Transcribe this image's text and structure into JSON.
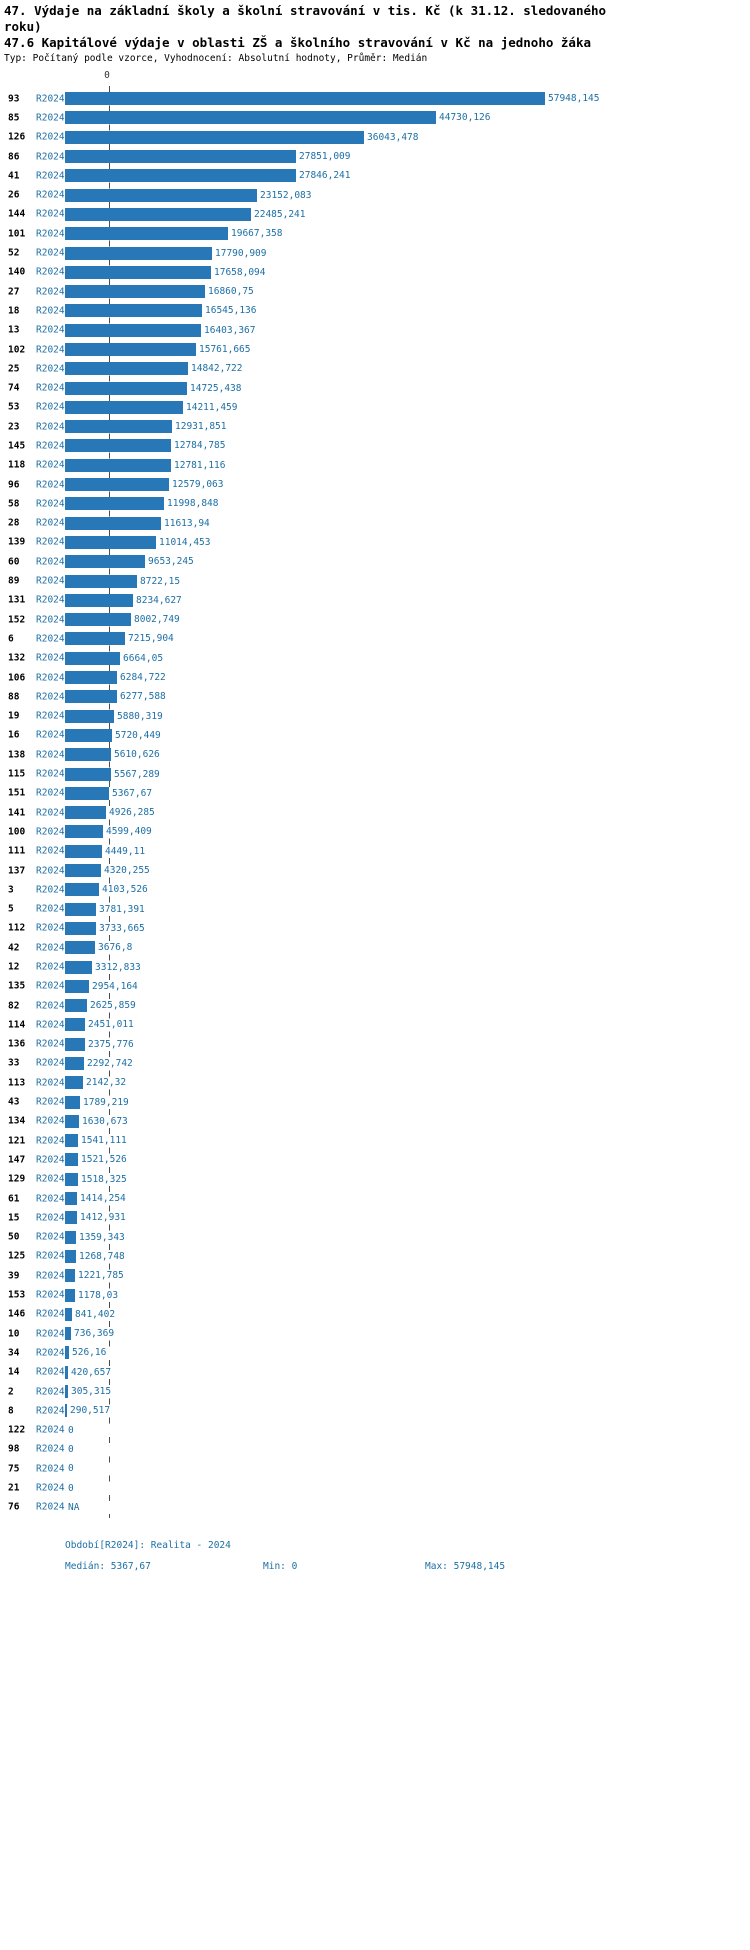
{
  "header": {
    "title_line1": "47. Výdaje na základní školy a školní stravování v tis. Kč (k 31.12. sledovaného",
    "title_line2": "roku)",
    "title_line3": "47.6 Kapitálové výdaje v oblasti ZŠ a školního stravování v Kč na jednoho žáka",
    "subtitle": "Typ: Počítaný podle vzorce, Vyhodnocení: Absolutní hodnoty, Průměr: Medián"
  },
  "axis": {
    "zero_label": "0"
  },
  "footer": {
    "period": "Období[R2024]: Realita - 2024",
    "median": "Medián: 5367,67",
    "min": "Min: 0",
    "max": "Max: 57948,145"
  },
  "colors": {
    "bar": "#2878b8",
    "link_text": "#1d6fa5",
    "median_line": "#4d4d4d"
  },
  "chart_data": {
    "type": "bar",
    "orientation": "horizontal",
    "title": "47.6 Kapitálové výdaje v oblasti ZŠ a školního stravování v Kč na jednoho žáka",
    "series_label": "R2024",
    "median_value": 5367.67,
    "min_value": 0,
    "max_value": 57948.145,
    "legend_position": "none",
    "grid": false,
    "rows": [
      {
        "id": "93",
        "value": 57948.145,
        "label": "57948,145"
      },
      {
        "id": "85",
        "value": 44730.126,
        "label": "44730,126"
      },
      {
        "id": "126",
        "value": 36043.478,
        "label": "36043,478"
      },
      {
        "id": "86",
        "value": 27851.009,
        "label": "27851,009"
      },
      {
        "id": "41",
        "value": 27846.241,
        "label": "27846,241"
      },
      {
        "id": "26",
        "value": 23152.083,
        "label": "23152,083"
      },
      {
        "id": "144",
        "value": 22485.241,
        "label": "22485,241"
      },
      {
        "id": "101",
        "value": 19667.358,
        "label": "19667,358"
      },
      {
        "id": "52",
        "value": 17790.909,
        "label": "17790,909"
      },
      {
        "id": "140",
        "value": 17658.094,
        "label": "17658,094"
      },
      {
        "id": "27",
        "value": 16860.75,
        "label": "16860,75"
      },
      {
        "id": "18",
        "value": 16545.136,
        "label": "16545,136"
      },
      {
        "id": "13",
        "value": 16403.367,
        "label": "16403,367"
      },
      {
        "id": "102",
        "value": 15761.665,
        "label": "15761,665"
      },
      {
        "id": "25",
        "value": 14842.722,
        "label": "14842,722"
      },
      {
        "id": "74",
        "value": 14725.438,
        "label": "14725,438"
      },
      {
        "id": "53",
        "value": 14211.459,
        "label": "14211,459"
      },
      {
        "id": "23",
        "value": 12931.851,
        "label": "12931,851"
      },
      {
        "id": "145",
        "value": 12784.785,
        "label": "12784,785"
      },
      {
        "id": "118",
        "value": 12781.116,
        "label": "12781,116"
      },
      {
        "id": "96",
        "value": 12579.063,
        "label": "12579,063"
      },
      {
        "id": "58",
        "value": 11998.848,
        "label": "11998,848"
      },
      {
        "id": "28",
        "value": 11613.94,
        "label": "11613,94"
      },
      {
        "id": "139",
        "value": 11014.453,
        "label": "11014,453"
      },
      {
        "id": "60",
        "value": 9653.245,
        "label": "9653,245"
      },
      {
        "id": "89",
        "value": 8722.15,
        "label": "8722,15"
      },
      {
        "id": "131",
        "value": 8234.627,
        "label": "8234,627"
      },
      {
        "id": "152",
        "value": 8002.749,
        "label": "8002,749"
      },
      {
        "id": "6",
        "value": 7215.904,
        "label": "7215,904"
      },
      {
        "id": "132",
        "value": 6664.05,
        "label": "6664,05"
      },
      {
        "id": "106",
        "value": 6284.722,
        "label": "6284,722"
      },
      {
        "id": "88",
        "value": 6277.588,
        "label": "6277,588"
      },
      {
        "id": "19",
        "value": 5880.319,
        "label": "5880,319"
      },
      {
        "id": "16",
        "value": 5720.449,
        "label": "5720,449"
      },
      {
        "id": "138",
        "value": 5610.626,
        "label": "5610,626"
      },
      {
        "id": "115",
        "value": 5567.289,
        "label": "5567,289"
      },
      {
        "id": "151",
        "value": 5367.67,
        "label": "5367,67"
      },
      {
        "id": "141",
        "value": 4926.285,
        "label": "4926,285"
      },
      {
        "id": "100",
        "value": 4599.409,
        "label": "4599,409"
      },
      {
        "id": "111",
        "value": 4449.11,
        "label": "4449,11"
      },
      {
        "id": "137",
        "value": 4320.255,
        "label": "4320,255"
      },
      {
        "id": "3",
        "value": 4103.526,
        "label": "4103,526"
      },
      {
        "id": "5",
        "value": 3781.391,
        "label": "3781,391"
      },
      {
        "id": "112",
        "value": 3733.665,
        "label": "3733,665"
      },
      {
        "id": "42",
        "value": 3676.8,
        "label": "3676,8"
      },
      {
        "id": "12",
        "value": 3312.833,
        "label": "3312,833"
      },
      {
        "id": "135",
        "value": 2954.164,
        "label": "2954,164"
      },
      {
        "id": "82",
        "value": 2625.859,
        "label": "2625,859"
      },
      {
        "id": "114",
        "value": 2451.011,
        "label": "2451,011"
      },
      {
        "id": "136",
        "value": 2375.776,
        "label": "2375,776"
      },
      {
        "id": "33",
        "value": 2292.742,
        "label": "2292,742"
      },
      {
        "id": "113",
        "value": 2142.32,
        "label": "2142,32"
      },
      {
        "id": "43",
        "value": 1789.219,
        "label": "1789,219"
      },
      {
        "id": "134",
        "value": 1630.673,
        "label": "1630,673"
      },
      {
        "id": "121",
        "value": 1541.111,
        "label": "1541,111"
      },
      {
        "id": "147",
        "value": 1521.526,
        "label": "1521,526"
      },
      {
        "id": "129",
        "value": 1518.325,
        "label": "1518,325"
      },
      {
        "id": "61",
        "value": 1414.254,
        "label": "1414,254"
      },
      {
        "id": "15",
        "value": 1412.931,
        "label": "1412,931"
      },
      {
        "id": "50",
        "value": 1359.343,
        "label": "1359,343"
      },
      {
        "id": "125",
        "value": 1268.748,
        "label": "1268,748"
      },
      {
        "id": "39",
        "value": 1221.785,
        "label": "1221,785"
      },
      {
        "id": "153",
        "value": 1178.03,
        "label": "1178,03"
      },
      {
        "id": "146",
        "value": 841.402,
        "label": "841,402"
      },
      {
        "id": "10",
        "value": 736.369,
        "label": "736,369"
      },
      {
        "id": "34",
        "value": 526.16,
        "label": "526,16"
      },
      {
        "id": "14",
        "value": 420.657,
        "label": "420,657"
      },
      {
        "id": "2",
        "value": 305.315,
        "label": "305,315"
      },
      {
        "id": "8",
        "value": 290.517,
        "label": "290,517"
      },
      {
        "id": "122",
        "value": 0,
        "label": "0"
      },
      {
        "id": "98",
        "value": 0,
        "label": "0"
      },
      {
        "id": "75",
        "value": 0,
        "label": "0"
      },
      {
        "id": "21",
        "value": 0,
        "label": "0"
      },
      {
        "id": "76",
        "value": null,
        "label": "NA"
      }
    ]
  }
}
